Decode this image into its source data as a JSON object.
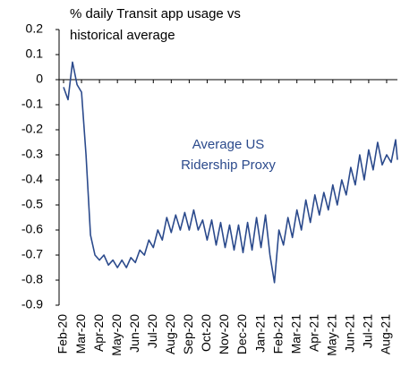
{
  "chart_data": {
    "type": "line",
    "title": "% daily Transit app usage vs historical average",
    "annotation": "Average US Ridership Proxy",
    "color": "#2b4a8c",
    "xlim": [
      -0.25,
      18.6
    ],
    "xticks": [
      {
        "value": 0,
        "label": "Feb-20"
      },
      {
        "value": 1,
        "label": "Mar-20"
      },
      {
        "value": 2,
        "label": "Apr-20"
      },
      {
        "value": 3,
        "label": "May-20"
      },
      {
        "value": 4,
        "label": "Jun-20"
      },
      {
        "value": 5,
        "label": "Jul-20"
      },
      {
        "value": 6,
        "label": "Aug-20"
      },
      {
        "value": 7,
        "label": "Sep-20"
      },
      {
        "value": 8,
        "label": "Oct-20"
      },
      {
        "value": 9,
        "label": "Nov-20"
      },
      {
        "value": 10,
        "label": "Dec-20"
      },
      {
        "value": 11,
        "label": "Jan-21"
      },
      {
        "value": 12,
        "label": "Feb-21"
      },
      {
        "value": 13,
        "label": "Mar-21"
      },
      {
        "value": 14,
        "label": "Apr-21"
      },
      {
        "value": 15,
        "label": "May-21"
      },
      {
        "value": 16,
        "label": "Jun-21"
      },
      {
        "value": 17,
        "label": "Jul-21"
      },
      {
        "value": 18,
        "label": "Aug-21"
      }
    ],
    "ylim": [
      -0.9,
      0.2
    ],
    "yticks": [
      0.2,
      0.1,
      0,
      -0.1,
      -0.2,
      -0.3,
      -0.4,
      -0.5,
      -0.6,
      -0.7,
      -0.8,
      -0.9
    ],
    "x": [
      0,
      0.25,
      0.5,
      0.75,
      1,
      1.25,
      1.5,
      1.75,
      2,
      2.25,
      2.5,
      2.75,
      3,
      3.25,
      3.5,
      3.75,
      4,
      4.25,
      4.5,
      4.75,
      5,
      5.25,
      5.5,
      5.75,
      6,
      6.25,
      6.5,
      6.75,
      7,
      7.25,
      7.5,
      7.75,
      8,
      8.25,
      8.5,
      8.75,
      9,
      9.25,
      9.5,
      9.75,
      10,
      10.25,
      10.5,
      10.75,
      11,
      11.25,
      11.5,
      11.75,
      12,
      12.25,
      12.5,
      12.75,
      13,
      13.25,
      13.5,
      13.75,
      14,
      14.25,
      14.5,
      14.75,
      15,
      15.25,
      15.5,
      15.75,
      16,
      16.25,
      16.5,
      16.75,
      17,
      17.25,
      17.5,
      17.75,
      18,
      18.25,
      18.5,
      18.6
    ],
    "values": [
      -0.03,
      -0.08,
      0.07,
      -0.02,
      -0.05,
      -0.3,
      -0.62,
      -0.7,
      -0.72,
      -0.7,
      -0.74,
      -0.72,
      -0.75,
      -0.72,
      -0.75,
      -0.71,
      -0.73,
      -0.68,
      -0.7,
      -0.64,
      -0.67,
      -0.6,
      -0.64,
      -0.55,
      -0.61,
      -0.54,
      -0.6,
      -0.53,
      -0.6,
      -0.52,
      -0.6,
      -0.56,
      -0.64,
      -0.56,
      -0.66,
      -0.57,
      -0.67,
      -0.58,
      -0.68,
      -0.58,
      -0.69,
      -0.57,
      -0.68,
      -0.55,
      -0.67,
      -0.54,
      -0.7,
      -0.81,
      -0.6,
      -0.66,
      -0.55,
      -0.63,
      -0.52,
      -0.6,
      -0.48,
      -0.57,
      -0.46,
      -0.54,
      -0.45,
      -0.52,
      -0.42,
      -0.5,
      -0.4,
      -0.46,
      -0.35,
      -0.42,
      -0.3,
      -0.4,
      -0.28,
      -0.36,
      -0.25,
      -0.34,
      -0.3,
      -0.33,
      -0.24,
      -0.32
    ]
  }
}
